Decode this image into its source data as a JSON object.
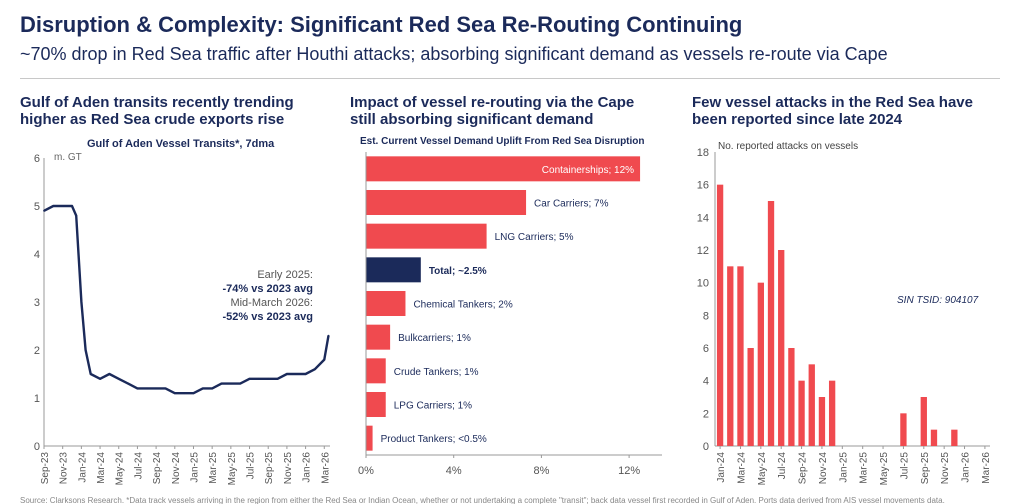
{
  "header": {
    "title": "Disruption & Complexity: Significant Red Sea Re-Routing Continuing",
    "subtitle": "~70% drop in Red Sea traffic after Houthi attacks; absorbing significant demand as vessels re-route via Cape"
  },
  "panels": {
    "left": {
      "heading": [
        "Gulf of Aden transits recently trending",
        "higher as Red Sea crude exports rise"
      ]
    },
    "middle": {
      "heading": [
        "Impact of vessel re-routing via the Cape",
        "still absorbing significant demand"
      ]
    },
    "right": {
      "heading": [
        "Few vessel attacks in the Red Sea have",
        "been reported since late 2024"
      ]
    }
  },
  "footer": "Source: Clarksons Research. *Data track vessels arriving in the region from either the Red Sea or Indian Ocean, whether or not undertaking a complete \"transit\"; back data vessel first recorded in Gulf of Aden. Ports data derived from AIS vessel movements data.",
  "chart_data": [
    {
      "type": "line",
      "title": "Gulf of Aden Vessel Transits*, 7dma",
      "unit_label": "m. GT",
      "ylim": [
        0,
        6
      ],
      "yticks": [
        0,
        1,
        2,
        3,
        4,
        5,
        6
      ],
      "x_ticks": [
        "Sep-23",
        "Nov-23",
        "Jan-24",
        "Mar-24",
        "May-24",
        "Jul-24",
        "Sep-24",
        "Nov-24",
        "Jan-25",
        "Mar-25",
        "May-25",
        "Jul-25",
        "Sep-25",
        "Nov-25",
        "Jan-26",
        "Mar-26"
      ],
      "annotations": [
        "Early 2025:",
        "-74% vs 2023 avg",
        "Mid-March 2026:",
        "-52% vs 2023 avg"
      ],
      "color": "#1b2a5a",
      "x": [
        "2023-09-01",
        "2023-10-01",
        "2023-11-01",
        "2023-12-01",
        "2023-12-15",
        "2024-01-01",
        "2024-01-15",
        "2024-02-01",
        "2024-03-01",
        "2024-04-01",
        "2024-05-01",
        "2024-06-01",
        "2024-07-01",
        "2024-08-01",
        "2024-09-01",
        "2024-10-01",
        "2024-11-01",
        "2024-12-01",
        "2025-01-01",
        "2025-02-01",
        "2025-03-01",
        "2025-04-01",
        "2025-05-01",
        "2025-06-01",
        "2025-07-01",
        "2025-08-01",
        "2025-09-01",
        "2025-10-01",
        "2025-11-01",
        "2025-12-01",
        "2026-01-01",
        "2026-02-01",
        "2026-03-01",
        "2026-03-15"
      ],
      "y": [
        4.9,
        5.0,
        5.0,
        5.0,
        4.8,
        3.0,
        2.0,
        1.5,
        1.4,
        1.5,
        1.4,
        1.3,
        1.2,
        1.2,
        1.2,
        1.2,
        1.1,
        1.1,
        1.1,
        1.2,
        1.2,
        1.3,
        1.3,
        1.3,
        1.4,
        1.4,
        1.4,
        1.4,
        1.5,
        1.5,
        1.5,
        1.6,
        1.8,
        2.3
      ]
    },
    {
      "type": "bar",
      "orientation": "horizontal",
      "title": "Est. Current Vessel Demand Uplift From Red Sea Disruption",
      "categories": [
        "Containerships; 12%",
        "Car Carriers; 7%",
        "LNG Carriers; 5%",
        "Total; ~2.5%",
        "Chemical Tankers; 2%",
        "Bulkcarriers; 1%",
        "Crude Tankers; 1%",
        "LPG Carriers; 1%",
        "Product Tankers; <0.5%"
      ],
      "values": [
        12.5,
        7.3,
        5.5,
        2.5,
        1.8,
        1.1,
        0.9,
        0.9,
        0.3
      ],
      "xlim": [
        0,
        13.5
      ],
      "xticks": [
        "0%",
        "4%",
        "8%",
        "12%"
      ],
      "colors": [
        "#f04a4f",
        "#f04a4f",
        "#f04a4f",
        "#1b2a5a",
        "#f04a4f",
        "#f04a4f",
        "#f04a4f",
        "#f04a4f",
        "#f04a4f"
      ]
    },
    {
      "type": "bar",
      "title": "No. reported attacks on vessels",
      "annotation": "SIN TSID: 904107",
      "ylim": [
        0,
        18
      ],
      "yticks": [
        0,
        2,
        4,
        6,
        8,
        10,
        12,
        14,
        16,
        18
      ],
      "x_ticks": [
        "Jan-24",
        "Mar-24",
        "May-24",
        "Jul-24",
        "Sep-24",
        "Nov-24",
        "Jan-25",
        "Mar-25",
        "May-25",
        "Jul-25",
        "Sep-25",
        "Nov-25",
        "Jan-26",
        "Mar-26"
      ],
      "categories": [
        "Jan-24",
        "Feb-24",
        "Mar-24",
        "Apr-24",
        "May-24",
        "Jun-24",
        "Jul-24",
        "Aug-24",
        "Sep-24",
        "Oct-24",
        "Nov-24",
        "Dec-24",
        "Jan-25",
        "Feb-25",
        "Mar-25",
        "Apr-25",
        "May-25",
        "Jun-25",
        "Jul-25",
        "Aug-25",
        "Sep-25",
        "Oct-25",
        "Nov-25",
        "Dec-25",
        "Jan-26",
        "Feb-26",
        "Mar-26"
      ],
      "values": [
        16,
        11,
        11,
        6,
        10,
        15,
        12,
        6,
        4,
        5,
        3,
        4,
        0,
        0,
        0,
        0,
        0,
        0,
        2,
        0,
        3,
        1,
        0,
        1,
        0,
        0,
        0
      ],
      "color": "#f04a4f"
    }
  ]
}
